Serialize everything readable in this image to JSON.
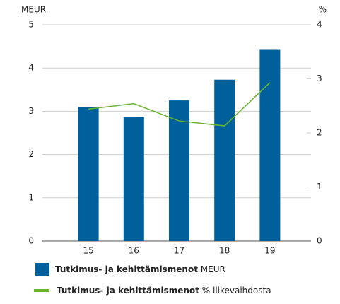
{
  "chart_data": {
    "type": "bar",
    "ylabel": "MEUR",
    "y2label": "%",
    "categories": [
      "15",
      "16",
      "17",
      "18",
      "19"
    ],
    "series": [
      {
        "name": "Tutkimus- ja kehittämismenot",
        "legend_suffix": "MEUR",
        "color": "#00609c",
        "type": "bar",
        "values": [
          3.1,
          2.87,
          3.25,
          3.73,
          4.42
        ]
      },
      {
        "name": "Tutkimus- ja kehittämismenot",
        "legend_suffix": "% liikevaihdosta",
        "color": "#6ab42d",
        "type": "line",
        "axis": "y2",
        "values": [
          2.44,
          2.54,
          2.22,
          2.13,
          2.93
        ]
      }
    ],
    "ylim": [
      0,
      5
    ],
    "yticks": [
      0,
      1,
      2,
      3,
      4,
      5
    ],
    "y2lim": [
      0,
      4
    ],
    "y2ticks": [
      0,
      1,
      2,
      3,
      4
    ],
    "grid": true
  }
}
